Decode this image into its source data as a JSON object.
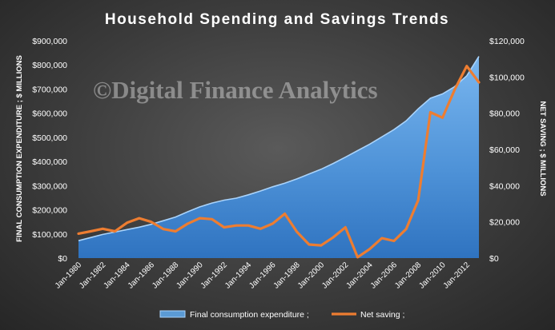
{
  "chart_data": {
    "type": "area+line",
    "title": "Household Spending and Savings Trends",
    "watermark": "©Digital Finance Analytics",
    "y_left_label": "FINAL CONSUMPTION EXPENDITURE ; $ MILLIONS",
    "y_right_label": "NET SAVING ; $ MILLIONS",
    "y_left_lim": [
      0,
      900000
    ],
    "y_right_lim": [
      0,
      120000
    ],
    "y_left_ticks": [
      "$0",
      "$100,000",
      "$200,000",
      "$300,000",
      "$400,000",
      "$500,000",
      "$600,000",
      "$700,000",
      "$800,000",
      "$900,000"
    ],
    "y_right_ticks": [
      "$0",
      "$20,000",
      "$40,000",
      "$60,000",
      "$80,000",
      "$100,000",
      "$120,000"
    ],
    "x_tick_labels": [
      "Jan-1980",
      "Jan-1982",
      "Jan-1984",
      "Jan-1986",
      "Jan-1988",
      "Jan-1990",
      "Jan-1992",
      "Jan-1994",
      "Jan-1996",
      "Jan-1998",
      "Jan-2000",
      "Jan-2002",
      "Jan-2004",
      "Jan-2006",
      "Jan-2008",
      "Jan-2010",
      "Jan-2012"
    ],
    "years": [
      1980,
      1981,
      1982,
      1983,
      1984,
      1985,
      1986,
      1987,
      1988,
      1989,
      1990,
      1991,
      1992,
      1993,
      1994,
      1995,
      1996,
      1997,
      1998,
      1999,
      2000,
      2001,
      2002,
      2003,
      2004,
      2005,
      2006,
      2007,
      2008,
      2009,
      2010,
      2011,
      2012,
      2013
    ],
    "grid": false,
    "legend_position": "bottom",
    "series": [
      {
        "name": "Final consumption expenditure ;",
        "type": "area",
        "axis": "left",
        "color": "#5b9bd5",
        "values": [
          72000,
          85000,
          98000,
          108000,
          118000,
          128000,
          140000,
          155000,
          170000,
          192000,
          212000,
          228000,
          240000,
          248000,
          262000,
          278000,
          295000,
          310000,
          328000,
          348000,
          368000,
          392000,
          418000,
          445000,
          472000,
          502000,
          532000,
          568000,
          618000,
          662000,
          680000,
          710000,
          755000,
          835000
        ]
      },
      {
        "name": "Net saving ;",
        "type": "line",
        "axis": "right",
        "color": "#ed7d31",
        "values": [
          13500,
          14800,
          16200,
          14800,
          19500,
          22000,
          20000,
          16000,
          14800,
          19000,
          22000,
          21500,
          17000,
          18000,
          18000,
          16200,
          19000,
          24500,
          14500,
          7500,
          7000,
          11500,
          17000,
          500,
          5000,
          11000,
          9500,
          16000,
          32000,
          80500,
          77500,
          93000,
          106000,
          97000
        ]
      }
    ]
  }
}
